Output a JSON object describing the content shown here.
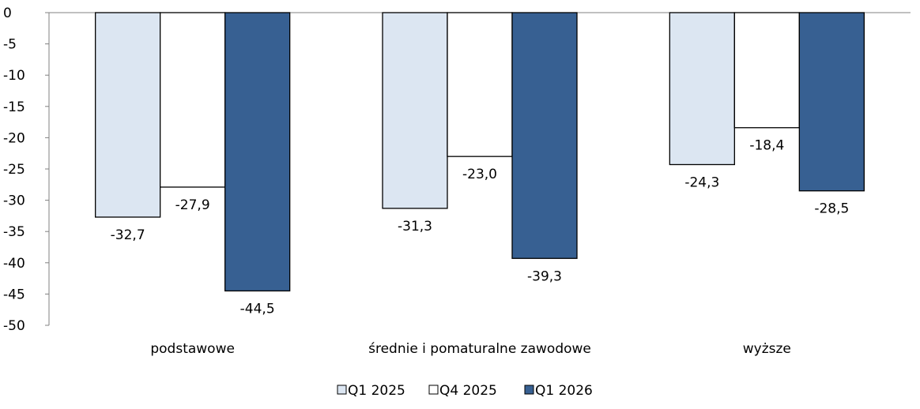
{
  "chart_data": {
    "type": "bar",
    "categories": [
      "podstawowe",
      "średnie i pomaturalne zawodowe",
      "wyższe"
    ],
    "series": [
      {
        "name": "Q1 2025",
        "values": [
          -32.7,
          -31.3,
          -24.3
        ],
        "labels": [
          "-32,7",
          "-31,3",
          "-24,3"
        ],
        "color": "#dce6f2"
      },
      {
        "name": "Q4 2025",
        "values": [
          -27.9,
          -23.0,
          -18.4
        ],
        "labels": [
          "-27,9",
          "-23,0",
          "-18,4"
        ],
        "color": "#ffffff"
      },
      {
        "name": "Q1 2026",
        "values": [
          -44.5,
          -39.3,
          -28.5
        ],
        "labels": [
          "-44,5",
          "-39,3",
          "-28,5"
        ],
        "color": "#376092"
      }
    ],
    "ylim": [
      -50,
      0
    ],
    "yticks": [
      0,
      -5,
      -10,
      -15,
      -20,
      -25,
      -30,
      -35,
      -40,
      -45,
      -50
    ],
    "grid": false,
    "legend_position": "bottom"
  }
}
